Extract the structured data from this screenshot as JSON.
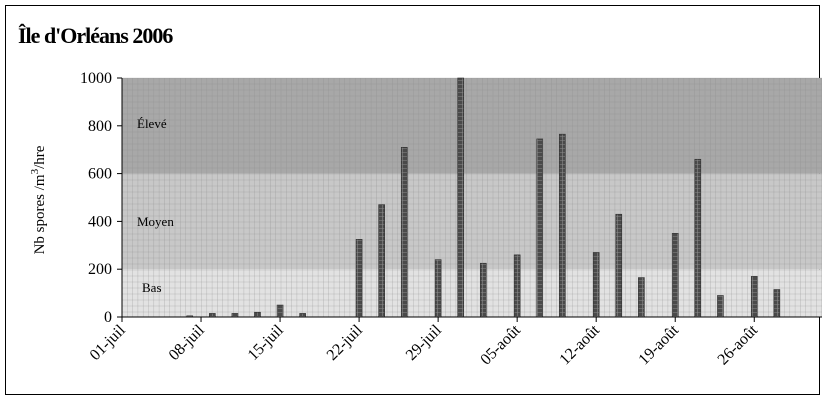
{
  "chart_data": {
    "type": "bar",
    "title": "Île d'Orléans 2006",
    "ylabel_text": "Nb spores /m",
    "ylabel_sup": "3",
    "ylabel_suffix": "/hre",
    "ylim": [
      0,
      1000
    ],
    "y_ticks": [
      "0",
      "200",
      "400",
      "600",
      "800",
      "1000"
    ],
    "x_tick_labels": [
      "01-juil",
      "08-juil",
      "15-juil",
      "22-juil",
      "29-juil",
      "05-août",
      "12-août",
      "19-août",
      "26-août"
    ],
    "x_start_day": 0,
    "x_end_day": 62,
    "x_tick_every_days": 7,
    "bands": [
      {
        "label": "Bas",
        "from": 0,
        "to": 200,
        "color": "#e2e2e2"
      },
      {
        "label": "Moyen",
        "from": 200,
        "to": 600,
        "color": "#c8c8c8"
      },
      {
        "label": "Élevé",
        "from": 600,
        "to": 1000,
        "color": "#a8a8a8"
      }
    ],
    "bar_color": "#505050",
    "grid": true,
    "points": [
      {
        "day": 6,
        "value": 5
      },
      {
        "day": 8,
        "value": 15
      },
      {
        "day": 10,
        "value": 15
      },
      {
        "day": 12,
        "value": 20
      },
      {
        "day": 14,
        "value": 50
      },
      {
        "day": 16,
        "value": 15
      },
      {
        "day": 21,
        "value": 325
      },
      {
        "day": 23,
        "value": 470
      },
      {
        "day": 25,
        "value": 710
      },
      {
        "day": 28,
        "value": 240
      },
      {
        "day": 30,
        "value": 1000
      },
      {
        "day": 32,
        "value": 225
      },
      {
        "day": 35,
        "value": 260
      },
      {
        "day": 37,
        "value": 745
      },
      {
        "day": 39,
        "value": 765
      },
      {
        "day": 42,
        "value": 270
      },
      {
        "day": 44,
        "value": 430
      },
      {
        "day": 46,
        "value": 165
      },
      {
        "day": 49,
        "value": 350
      },
      {
        "day": 51,
        "value": 660
      },
      {
        "day": 53,
        "value": 90
      },
      {
        "day": 56,
        "value": 170
      },
      {
        "day": 58,
        "value": 115
      }
    ]
  }
}
